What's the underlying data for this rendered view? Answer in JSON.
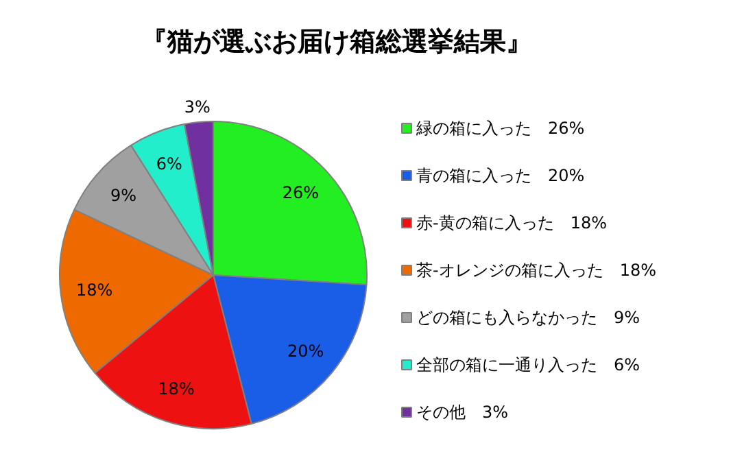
{
  "chart_data": {
    "type": "pie",
    "title": "『猫が選ぶお届け箱総選挙結果』",
    "categories": [
      "緑の箱に入った　26%",
      "青の箱に入った　20%",
      "赤-黄の箱に入った　18%",
      "茶-オレンジの箱に入った　18%",
      "どの箱にも入らなかった　9%",
      "全部の箱に一通り入った　6%",
      "その他　3%"
    ],
    "values": [
      26,
      20,
      18,
      18,
      9,
      6,
      3
    ],
    "colors": [
      "#22ee22",
      "#1a5ee8",
      "#ee1111",
      "#ee6a00",
      "#a0a0a0",
      "#22eecc",
      "#7030a0"
    ],
    "value_labels": [
      "26%",
      "20%",
      "18%",
      "18%",
      "9%",
      "6%",
      "3%"
    ],
    "legend": "right"
  }
}
